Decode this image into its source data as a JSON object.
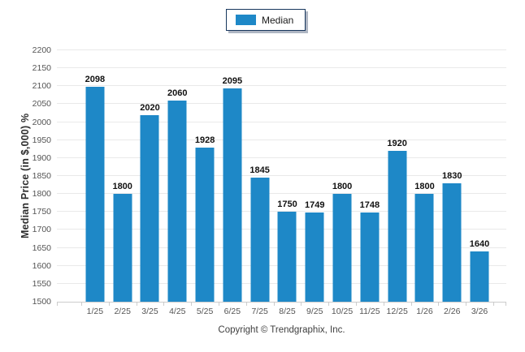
{
  "legend": {
    "label": "Median",
    "swatch_color": "#1E88C7"
  },
  "chart_data": {
    "type": "bar",
    "title": "",
    "categories": [
      "1/25",
      "2/25",
      "3/25",
      "4/25",
      "5/25",
      "6/25",
      "7/25",
      "8/25",
      "9/25",
      "10/25",
      "11/25",
      "12/25",
      "1/26",
      "2/26",
      "3/26"
    ],
    "series": [
      {
        "name": "Median",
        "values": [
          2098,
          1800,
          2020,
          2060,
          1928,
          2095,
          1845,
          1750,
          1749,
          1800,
          1748,
          1920,
          1800,
          1830,
          1640
        ]
      }
    ],
    "xlabel": "",
    "ylabel": "Median Price (in $,000) %",
    "ylim": [
      1500,
      2200
    ],
    "ytick_step": 50,
    "grid": "horizontal",
    "legend_position": "top-center",
    "bar_color": "#1E88C7",
    "gridline_color": "#e9e9e9",
    "axis_color": "#cccccc"
  },
  "footer": {
    "copyright": "Copyright © Trendgraphix, Inc."
  }
}
